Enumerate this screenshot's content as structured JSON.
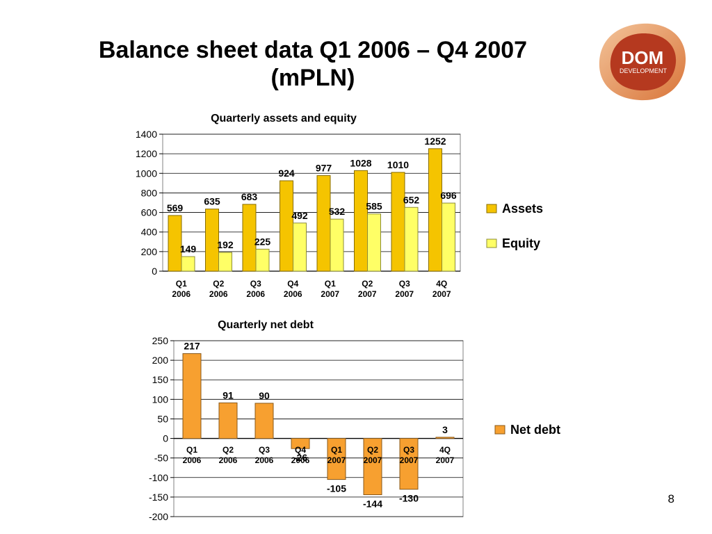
{
  "slide": {
    "title_line1": "Balance sheet data Q1 2006 – Q4 2007",
    "title_line2": "(mPLN)",
    "page_number": "8"
  },
  "logo": {
    "main_text": "DOM",
    "sub_text": "DEVELOPMENT",
    "colors": {
      "outer": "#e8a06a",
      "inner": "#b5391f",
      "text": "#ffffff"
    }
  },
  "chart_data": [
    {
      "type": "bar",
      "title": "Quarterly assets and equity",
      "categories": [
        [
          "Q1",
          "2006"
        ],
        [
          "Q2",
          "2006"
        ],
        [
          "Q3",
          "2006"
        ],
        [
          "Q4",
          "2006"
        ],
        [
          "Q1",
          "2007"
        ],
        [
          "Q2",
          "2007"
        ],
        [
          "Q3",
          "2007"
        ],
        [
          "4Q",
          "2007"
        ]
      ],
      "series": [
        {
          "name": "Assets",
          "values": [
            569,
            635,
            683,
            924,
            977,
            1028,
            1010,
            1252
          ],
          "color": "#f5c400"
        },
        {
          "name": "Equity",
          "values": [
            149,
            192,
            225,
            492,
            532,
            585,
            652,
            696
          ],
          "color": "#ffff66"
        }
      ],
      "ylim": [
        0,
        1400
      ],
      "yticks": [
        0,
        200,
        400,
        600,
        800,
        1000,
        1200,
        1400
      ],
      "grid": true,
      "legend": "right"
    },
    {
      "type": "bar",
      "title": "Quarterly net debt",
      "categories": [
        [
          "Q1",
          "2006"
        ],
        [
          "Q2",
          "2006"
        ],
        [
          "Q3",
          "2006"
        ],
        [
          "Q4",
          "2006"
        ],
        [
          "Q1",
          "2007"
        ],
        [
          "Q2",
          "2007"
        ],
        [
          "Q3",
          "2007"
        ],
        [
          "4Q",
          "2007"
        ]
      ],
      "series": [
        {
          "name": "Net debt",
          "values": [
            217,
            91,
            90,
            -26,
            -105,
            -144,
            -130,
            3
          ],
          "color": "#f7a030"
        }
      ],
      "ylim": [
        -200,
        250
      ],
      "yticks": [
        -200,
        -150,
        -100,
        -50,
        0,
        50,
        100,
        150,
        200,
        250
      ],
      "grid": true,
      "legend": "right"
    }
  ]
}
